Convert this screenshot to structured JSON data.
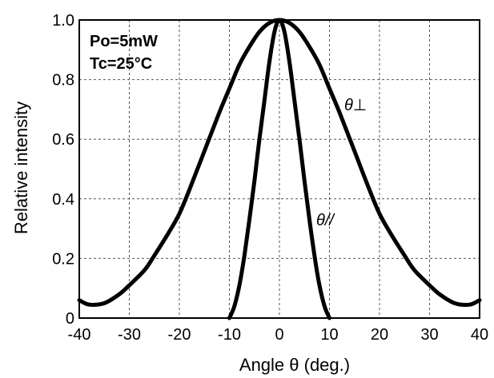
{
  "chart_data": {
    "type": "line",
    "title": "",
    "xlabel": "Angle θ (deg.)",
    "ylabel": "Relative intensity",
    "xlim": [
      -40,
      40
    ],
    "ylim": [
      0,
      1.0
    ],
    "grid": true,
    "grid_style": "dashed",
    "x_ticks": [
      -40,
      -30,
      -20,
      -10,
      0,
      10,
      20,
      30,
      40
    ],
    "x_tick_labels": [
      "-40",
      "-30",
      "-20",
      "-10",
      "0",
      "10",
      "20",
      "30",
      "40"
    ],
    "y_ticks": [
      0,
      0.2,
      0.4,
      0.6,
      0.8,
      1.0
    ],
    "y_tick_labels": [
      "0",
      "0.2",
      "0.4",
      "0.6",
      "0.8",
      "1.0"
    ],
    "annotations": [
      "Po=5mW",
      "Tc=25°C"
    ],
    "series": [
      {
        "name": "θ⊥",
        "x": [
          -40,
          -38,
          -35,
          -32,
          -30,
          -27,
          -25,
          -22,
          -20,
          -18,
          -15,
          -12,
          -10,
          -8,
          -6,
          -4,
          -2,
          0,
          2,
          4,
          6,
          8,
          10,
          12,
          15,
          18,
          20,
          22,
          25,
          27,
          30,
          32,
          35,
          38,
          40
        ],
        "y": [
          0.06,
          0.045,
          0.05,
          0.08,
          0.11,
          0.16,
          0.21,
          0.29,
          0.35,
          0.43,
          0.56,
          0.69,
          0.77,
          0.85,
          0.91,
          0.96,
          0.99,
          1.0,
          0.99,
          0.96,
          0.91,
          0.85,
          0.77,
          0.69,
          0.56,
          0.43,
          0.35,
          0.29,
          0.21,
          0.16,
          0.11,
          0.08,
          0.05,
          0.045,
          0.06
        ]
      },
      {
        "name": "θ//",
        "x": [
          -10,
          -9,
          -8,
          -7,
          -6,
          -5,
          -4,
          -3,
          -2,
          -1,
          0,
          1,
          2,
          3,
          4,
          5,
          6,
          7,
          8,
          9,
          10
        ],
        "y": [
          0.0,
          0.04,
          0.11,
          0.21,
          0.33,
          0.46,
          0.6,
          0.73,
          0.86,
          0.96,
          1.0,
          0.96,
          0.86,
          0.73,
          0.6,
          0.46,
          0.33,
          0.21,
          0.11,
          0.04,
          0.0
        ]
      }
    ]
  }
}
